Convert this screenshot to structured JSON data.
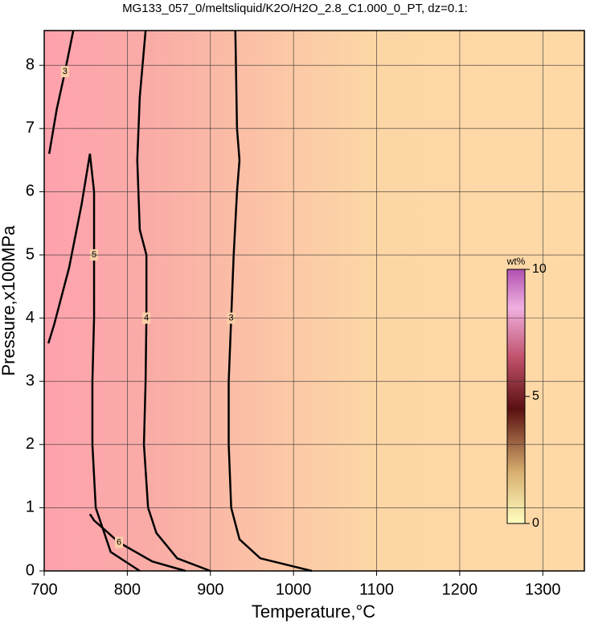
{
  "chart_data": {
    "type": "contour",
    "title": "MG133_057_0/meltsliquid/K2O/H2O_2.8_C1.000_0_PT, dz=0.1:",
    "x_label": "Temperature,°C",
    "y_label": "Pressure,x100MPa",
    "xlim": [
      700,
      1350
    ],
    "ylim": [
      0,
      8.55
    ],
    "xticks": [
      700,
      800,
      900,
      1000,
      1100,
      1200,
      1300
    ],
    "yticks": [
      0,
      1,
      2,
      3,
      4,
      5,
      6,
      7,
      8
    ],
    "grid": true,
    "contours": [
      {
        "level": 3,
        "x": [
          1022,
          960,
          935,
          925,
          922,
          922,
          925,
          928,
          932,
          935,
          932,
          930
        ],
        "y": [
          0,
          0.2,
          0.5,
          1,
          2,
          3,
          4,
          5,
          6,
          6.5,
          7,
          8.55
        ]
      },
      {
        "level": 4,
        "x": [
          900,
          860,
          835,
          825,
          820,
          822,
          823,
          823,
          815,
          812,
          815,
          822
        ],
        "y": [
          0,
          0.2,
          0.6,
          1,
          2,
          3,
          4,
          5,
          5.4,
          6.5,
          7.5,
          8.55
        ]
      },
      {
        "level": 5,
        "x": [
          815,
          780,
          762,
          758,
          758,
          760,
          760,
          760,
          755,
          745,
          730,
          712,
          705
        ],
        "y": [
          0,
          0.3,
          1,
          2,
          3,
          4,
          5,
          6,
          6.6,
          5.8,
          4.8,
          3.9,
          3.6
        ]
      },
      {
        "level": 6,
        "x": [
          870,
          830,
          790,
          760,
          755
        ],
        "y": [
          0,
          0.15,
          0.45,
          0.8,
          0.9
        ]
      },
      {
        "level": 3,
        "x": [
          706,
          715,
          725,
          735
        ],
        "y": [
          6.6,
          7.3,
          7.9,
          8.55
        ]
      }
    ],
    "colorbar": {
      "label": "wt%",
      "lim": [
        0,
        10
      ],
      "ticks": [
        0,
        5,
        10
      ]
    }
  }
}
